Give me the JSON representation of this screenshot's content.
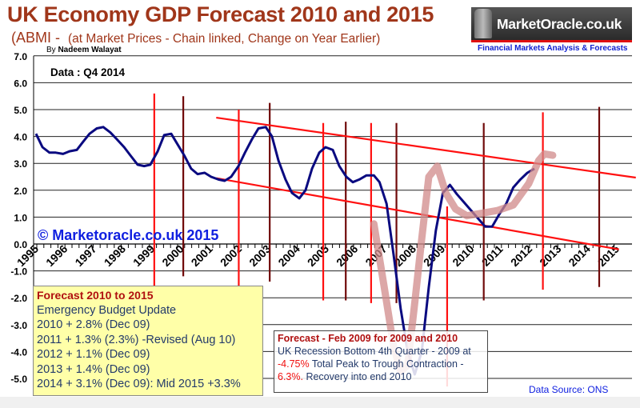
{
  "header": {
    "title": "UK Economy GDP Forecast 2010 and 2015",
    "subtitle_prefix": "(ABMI -",
    "subtitle": "(at Market Prices - Chain linked, Change on Year Earlier)",
    "byline_prefix": "By",
    "author": "Nadeem Walayat"
  },
  "logo": {
    "text": "MarketOracle.co.uk",
    "tagline": "Financial Markets Analysis & Forecasts"
  },
  "chart_data": {
    "type": "line",
    "title": "UK Economy GDP Forecast 2010 and 2015",
    "data_note": "Data : Q4 2014",
    "watermark": "© Marketoracle.co.uk 2015",
    "source": "Data Source: ONS",
    "ylim": [
      -5.0,
      7.0
    ],
    "xlim": [
      1995,
      2015.9
    ],
    "grid": true,
    "y_ticks": [
      "7.0",
      "6.0",
      "5.0",
      "4.0",
      "3.0",
      "2.0",
      "1.0",
      "0.0",
      "-1.0",
      "-2.0",
      "-3.0",
      "-4.0",
      "-5.0"
    ],
    "x_ticks": [
      "1995",
      "1996",
      "1997",
      "1998",
      "1999",
      "2000",
      "2001",
      "2002",
      "2003",
      "2004",
      "2005",
      "2006",
      "2007",
      "2008",
      "2009",
      "2010",
      "2011",
      "2012",
      "2013",
      "2014",
      "2015"
    ],
    "colors": {
      "actual": "#0a0a80",
      "forecast": "#d08a8a",
      "trend": "#ff1010",
      "marker_red": "#ff1010",
      "marker_dark": "#700a0a",
      "grid": "#000000"
    },
    "series": [
      {
        "role": "actual",
        "points": [
          [
            1995.0,
            4.1
          ],
          [
            1995.23,
            3.6
          ],
          [
            1995.48,
            3.4
          ],
          [
            1995.7,
            3.4
          ],
          [
            1995.96,
            3.35
          ],
          [
            1996.19,
            3.45
          ],
          [
            1996.45,
            3.5
          ],
          [
            1996.67,
            3.8
          ],
          [
            1996.9,
            4.1
          ],
          [
            1997.16,
            4.3
          ],
          [
            1997.39,
            4.35
          ],
          [
            1997.64,
            4.15
          ],
          [
            1997.87,
            3.9
          ],
          [
            1998.13,
            3.6
          ],
          [
            1998.35,
            3.3
          ],
          [
            1998.61,
            2.95
          ],
          [
            1998.84,
            2.9
          ],
          [
            1999.06,
            2.95
          ],
          [
            1999.32,
            3.45
          ],
          [
            1999.55,
            4.05
          ],
          [
            1999.8,
            4.1
          ],
          [
            2000.03,
            3.7
          ],
          [
            2000.26,
            3.3
          ],
          [
            2000.51,
            2.8
          ],
          [
            2000.74,
            2.6
          ],
          [
            2000.99,
            2.65
          ],
          [
            2001.22,
            2.5
          ],
          [
            2001.48,
            2.4
          ],
          [
            2001.7,
            2.35
          ],
          [
            2001.93,
            2.5
          ],
          [
            2002.19,
            2.9
          ],
          [
            2002.42,
            3.4
          ],
          [
            2002.67,
            3.9
          ],
          [
            2002.9,
            4.3
          ],
          [
            2003.16,
            4.35
          ],
          [
            2003.38,
            4.0
          ],
          [
            2003.61,
            3.1
          ],
          [
            2003.86,
            2.4
          ],
          [
            2004.09,
            1.9
          ],
          [
            2004.35,
            1.7
          ],
          [
            2004.57,
            2.0
          ],
          [
            2004.8,
            2.8
          ],
          [
            2005.06,
            3.4
          ],
          [
            2005.28,
            3.6
          ],
          [
            2005.54,
            3.5
          ],
          [
            2005.77,
            2.9
          ],
          [
            2006.02,
            2.5
          ],
          [
            2006.25,
            2.3
          ],
          [
            2006.48,
            2.4
          ],
          [
            2006.73,
            2.55
          ],
          [
            2007.0,
            2.55
          ],
          [
            2007.2,
            2.3
          ],
          [
            2007.45,
            1.5
          ],
          [
            2007.7,
            -0.4
          ],
          [
            2007.95,
            -2.4
          ],
          [
            2008.2,
            -4.0
          ],
          [
            2008.45,
            -4.85
          ],
          [
            2008.7,
            -4.0
          ],
          [
            2008.95,
            -1.6
          ],
          [
            2009.2,
            0.5
          ],
          [
            2009.45,
            1.9
          ],
          [
            2009.7,
            2.2
          ],
          [
            2009.95,
            1.85
          ],
          [
            2010.2,
            1.55
          ],
          [
            2010.45,
            1.25
          ],
          [
            2010.7,
            0.95
          ],
          [
            2010.95,
            0.65
          ],
          [
            2011.2,
            0.65
          ],
          [
            2011.45,
            1.1
          ],
          [
            2011.7,
            1.5
          ],
          [
            2011.95,
            2.1
          ],
          [
            2012.2,
            2.4
          ],
          [
            2012.45,
            2.65
          ],
          [
            2012.7,
            2.8
          ]
        ]
      },
      {
        "role": "forecast",
        "points": [
          [
            2007.0,
            0.75
          ],
          [
            2007.35,
            -1.5
          ],
          [
            2007.7,
            -3.8
          ],
          [
            2007.95,
            -4.75
          ],
          [
            2008.2,
            -4.5
          ],
          [
            2008.45,
            -2.2
          ],
          [
            2008.7,
            0.2
          ],
          [
            2008.95,
            2.5
          ],
          [
            2009.25,
            2.9
          ],
          [
            2009.55,
            1.9
          ],
          [
            2009.9,
            1.3
          ],
          [
            2010.3,
            1.05
          ],
          [
            2010.85,
            1.15
          ],
          [
            2011.4,
            1.25
          ],
          [
            2011.95,
            1.45
          ],
          [
            2012.5,
            2.25
          ],
          [
            2012.85,
            3.1
          ],
          [
            2013.05,
            3.35
          ],
          [
            2013.35,
            3.3
          ]
        ]
      }
    ],
    "trend_lines": [
      {
        "from": [
          2001.4,
          4.7
        ],
        "to": [
          2016.3,
          2.47
        ]
      },
      {
        "from": [
          2001.4,
          2.45
        ],
        "to": [
          2015.7,
          -0.2
        ]
      }
    ],
    "vertical_markers": [
      {
        "x": 1999.2,
        "y": [
          5.6,
          -1.7
        ],
        "style": "red"
      },
      {
        "x": 2000.23,
        "y": [
          5.5,
          -1.2
        ],
        "style": "dark"
      },
      {
        "x": 2002.2,
        "y": [
          5.0,
          -1.7
        ],
        "style": "red"
      },
      {
        "x": 2003.3,
        "y": [
          5.25,
          -1.4
        ],
        "style": "dark"
      },
      {
        "x": 2005.2,
        "y": [
          4.5,
          -2.1
        ],
        "style": "red"
      },
      {
        "x": 2006.0,
        "y": [
          4.55,
          -2.1
        ],
        "style": "dark"
      },
      {
        "x": 2006.9,
        "y": [
          4.5,
          -2.2
        ],
        "style": "red"
      },
      {
        "x": 2007.8,
        "y": [
          4.5,
          -2.2
        ],
        "style": "dark"
      },
      {
        "x": 2009.6,
        "y": [
          1.4,
          -5.3
        ],
        "style": "red"
      },
      {
        "x": 2010.9,
        "y": [
          4.5,
          -2.1
        ],
        "style": "dark"
      },
      {
        "x": 2013.0,
        "y": [
          4.9,
          -1.7
        ],
        "style": "red"
      },
      {
        "x": 2015.0,
        "y": [
          5.1,
          -1.6
        ],
        "style": "dark"
      }
    ]
  },
  "forecast_box": {
    "heading": "Forecast 2010 to 2015",
    "lines": [
      "Emergency Budget Update",
      "2010 + 2.8% (Dec 09)",
      "2011 + 1.3% (2.3%) -Revised (Aug 10)",
      "2012 + 1.1% (Dec 09)",
      "2013 + 1.4% (Dec 09)",
      "2014 + 3.1% (Dec 09): Mid 2015 +3.3%"
    ]
  },
  "recession_box": {
    "heading": "Forecast - Feb  2009 for 2009 and 2010",
    "line1": "UK Recession Bottom  4th Quarter - 2009 at",
    "value1": "-4.75%",
    "line2": "  Total Peak to Trough Contraction -",
    "value2": "6.3%.",
    "line3": " Recovery into end 2010"
  }
}
